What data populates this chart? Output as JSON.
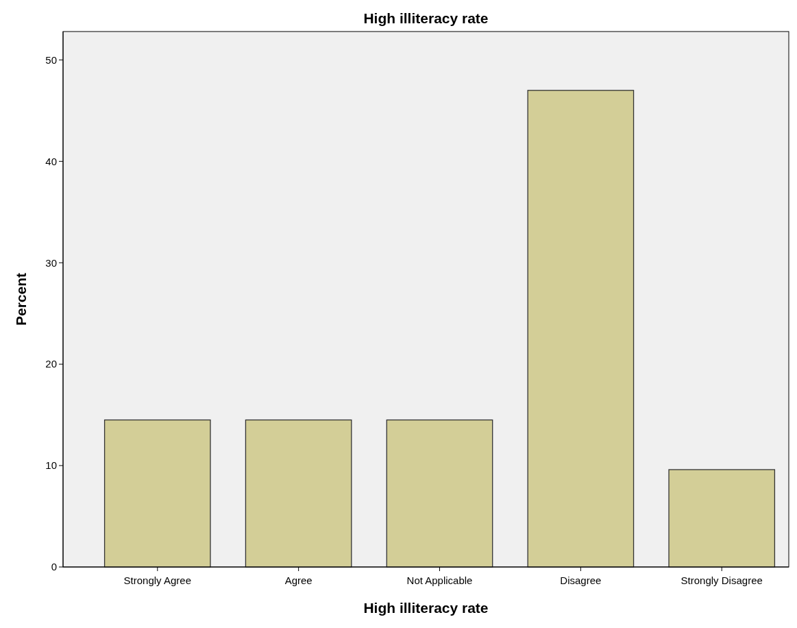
{
  "chart_data": {
    "type": "bar",
    "title": "High illiteracy rate",
    "xlabel": "High illiteracy rate",
    "ylabel": "Percent",
    "categories": [
      "Strongly Agree",
      "Agree",
      "Not Applicable",
      "Disagree",
      "Strongly Disagree"
    ],
    "values": [
      14.5,
      14.5,
      14.5,
      47.0,
      9.6
    ],
    "color": "#d3ce97",
    "ylim": [
      0,
      52.8
    ],
    "yticks": [
      0,
      10,
      20,
      30,
      40,
      50
    ],
    "grid": false
  }
}
